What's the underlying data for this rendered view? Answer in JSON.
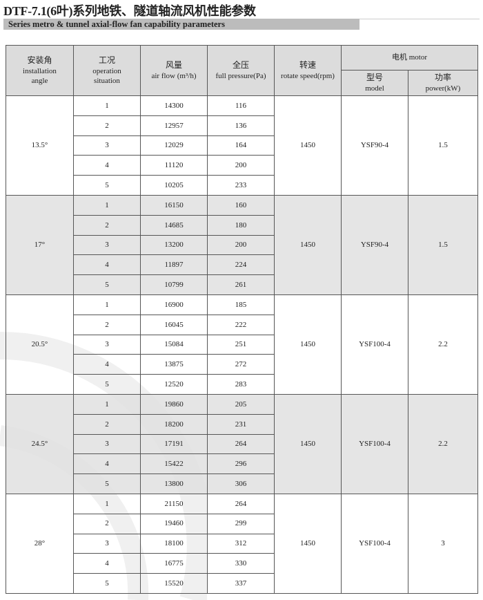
{
  "title": "DTF-7.1(6叶)系列地铁、隧道轴流风机性能参数",
  "subtitle": "Series metro & tunnel axial-flow fan capability parameters",
  "header": {
    "angle_zh": "安装角",
    "angle_en1": "installation",
    "angle_en2": "angle",
    "situation_zh": "工况",
    "situation_en1": "operation",
    "situation_en2": "situation",
    "airflow_zh": "风量",
    "airflow_en": "air flow (m³/h)",
    "pressure_zh": "全压",
    "pressure_en": "full pressure(Pa)",
    "speed_zh": "转速",
    "speed_en": "rotate speed(rpm)",
    "motor": "电机 motor",
    "model_zh": "型号",
    "model_en": "model",
    "power_zh": "功率",
    "power_en": "power(kW)"
  },
  "groups": [
    {
      "angle": "13.5°",
      "speed": "1450",
      "model": "YSF90-4",
      "power": "1.5",
      "shaded": false,
      "rows": [
        [
          "1",
          "14300",
          "116"
        ],
        [
          "2",
          "12957",
          "136"
        ],
        [
          "3",
          "12029",
          "164"
        ],
        [
          "4",
          "11120",
          "200"
        ],
        [
          "5",
          "10205",
          "233"
        ]
      ]
    },
    {
      "angle": "17°",
      "speed": "1450",
      "model": "YSF90-4",
      "power": "1.5",
      "shaded": true,
      "rows": [
        [
          "1",
          "16150",
          "160"
        ],
        [
          "2",
          "14685",
          "180"
        ],
        [
          "3",
          "13200",
          "200"
        ],
        [
          "4",
          "11897",
          "224"
        ],
        [
          "5",
          "10799",
          "261"
        ]
      ]
    },
    {
      "angle": "20.5°",
      "speed": "1450",
      "model": "YSF100-4",
      "power": "2.2",
      "shaded": false,
      "rows": [
        [
          "1",
          "16900",
          "185"
        ],
        [
          "2",
          "16045",
          "222"
        ],
        [
          "3",
          "15084",
          "251"
        ],
        [
          "4",
          "13875",
          "272"
        ],
        [
          "5",
          "12520",
          "283"
        ]
      ]
    },
    {
      "angle": "24.5°",
      "speed": "1450",
      "model": "YSF100-4",
      "power": "2.2",
      "shaded": true,
      "rows": [
        [
          "1",
          "19860",
          "205"
        ],
        [
          "2",
          "18200",
          "231"
        ],
        [
          "3",
          "17191",
          "264"
        ],
        [
          "4",
          "15422",
          "296"
        ],
        [
          "5",
          "13800",
          "306"
        ]
      ]
    },
    {
      "angle": "28°",
      "speed": "1450",
      "model": "YSF100-4",
      "power": "3",
      "shaded": false,
      "rows": [
        [
          "1",
          "21150",
          "264"
        ],
        [
          "2",
          "19460",
          "299"
        ],
        [
          "3",
          "18100",
          "312"
        ],
        [
          "4",
          "16775",
          "330"
        ],
        [
          "5",
          "15520",
          "337"
        ]
      ]
    }
  ]
}
